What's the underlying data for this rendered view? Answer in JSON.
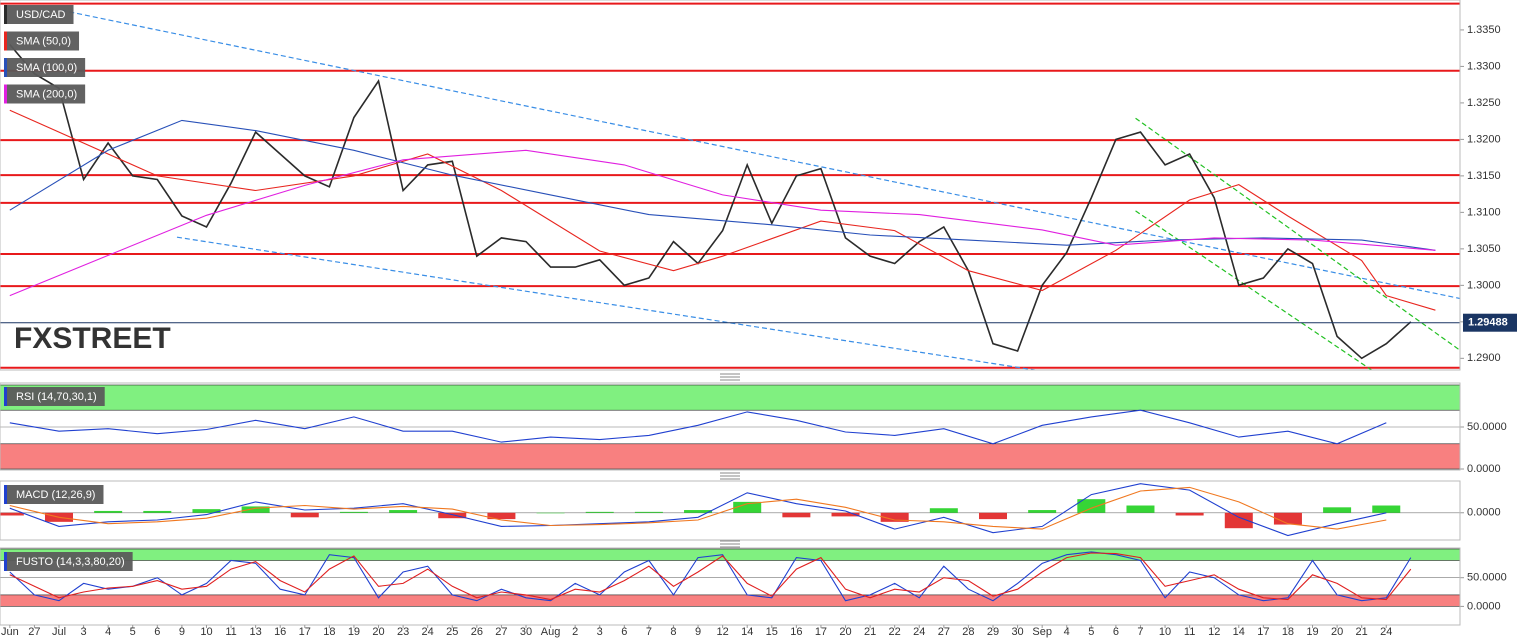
{
  "chart_data": [
    {
      "type": "line",
      "x": [
        0,
        1,
        2,
        3,
        4,
        5,
        6,
        7,
        8,
        9,
        10,
        11,
        12,
        13,
        14,
        15,
        16,
        17,
        18,
        19,
        20,
        21,
        22,
        23,
        24,
        25,
        26,
        27,
        28,
        29,
        30,
        31,
        32,
        33,
        34,
        35,
        36,
        37,
        38,
        39,
        40,
        41,
        42,
        43,
        44,
        45,
        46,
        47,
        48,
        49,
        50,
        51,
        52,
        53,
        54,
        55,
        56,
        57
      ],
      "xlim": [
        -0.4,
        59
      ],
      "ylim": [
        1.2884,
        1.3391
      ],
      "yticks": [
        {
          "value": 1.335,
          "label": "1.3350"
        },
        {
          "value": 1.33,
          "label": "1.3300"
        },
        {
          "value": 1.325,
          "label": "1.3250"
        },
        {
          "value": 1.32,
          "label": "1.3200"
        },
        {
          "value": 1.315,
          "label": "1.3150"
        },
        {
          "value": 1.31,
          "label": "1.3100"
        },
        {
          "value": 1.305,
          "label": "1.3050"
        },
        {
          "value": 1.3,
          "label": "1.3000"
        },
        {
          "value": 1.295,
          "label": "1.2950"
        },
        {
          "value": 1.29,
          "label": "1.2900"
        }
      ],
      "grid": false,
      "series": [
        {
          "name": "USD/CAD",
          "color": "#2b2b2b",
          "values": [
            1.333,
            1.329,
            1.327,
            1.3145,
            1.3195,
            1.315,
            1.3145,
            1.3095,
            1.308,
            1.314,
            1.321,
            1.318,
            1.315,
            1.3135,
            1.323,
            1.328,
            1.313,
            1.3165,
            1.317,
            1.304,
            1.3065,
            1.306,
            1.3025,
            1.3025,
            1.3035,
            1.3,
            1.301,
            1.306,
            1.303,
            1.3075,
            1.3165,
            1.3085,
            1.315,
            1.316,
            1.3065,
            1.304,
            1.303,
            1.306,
            1.308,
            1.302,
            1.292,
            1.291,
            1.3,
            1.3045,
            1.312,
            1.32,
            1.321,
            1.3165,
            1.318,
            1.312,
            1.3,
            1.301,
            1.305,
            1.303,
            1.293,
            1.29,
            1.292,
            1.295
          ]
        },
        {
          "name": "SMA (50,0)",
          "color": "#e8261f",
          "x": [
            0,
            6,
            10,
            14,
            17,
            20,
            24,
            27,
            29,
            33,
            36,
            39,
            42,
            45,
            48,
            50,
            52,
            55,
            56,
            58
          ],
          "values": [
            1.324,
            1.315,
            1.313,
            1.315,
            1.318,
            1.313,
            1.3047,
            1.302,
            1.304,
            1.3088,
            1.3075,
            1.302,
            1.2993,
            1.3048,
            1.3117,
            1.3138,
            1.3095,
            1.3034,
            1.2986,
            1.2966
          ]
        },
        {
          "name": "SMA (100,0)",
          "color": "#2850b8",
          "x": [
            0,
            4,
            7,
            10,
            14,
            18,
            22,
            26,
            31,
            35,
            39,
            43,
            47,
            51,
            55,
            58
          ],
          "values": [
            1.3103,
            1.3185,
            1.3226,
            1.3212,
            1.3185,
            1.3151,
            1.3124,
            1.3097,
            1.3083,
            1.3069,
            1.3062,
            1.3055,
            1.3062,
            1.3065,
            1.3062,
            1.3048
          ]
        },
        {
          "name": "SMA (200,0)",
          "color": "#e020e0",
          "x": [
            0,
            4,
            8,
            12,
            16,
            21,
            25,
            29,
            33,
            37,
            42,
            45,
            49,
            53,
            58
          ],
          "values": [
            1.2986,
            1.3041,
            1.3096,
            1.3137,
            1.3172,
            1.3185,
            1.3165,
            1.3124,
            1.3103,
            1.3097,
            1.3076,
            1.3055,
            1.3065,
            1.3062,
            1.3048
          ]
        }
      ],
      "levels": [
        1.3386,
        1.3294,
        1.3199,
        1.3151,
        1.3113,
        1.3043,
        1.2999,
        1.2887
      ],
      "level_color": "#e8191b",
      "trendlines": [
        {
          "color": "#3a8ee6",
          "x": [
            2.1,
            59
          ],
          "values": [
            1.3377,
            1.2982
          ]
        },
        {
          "color": "#3a8ee6",
          "x": [
            6.8,
            41.7
          ],
          "values": [
            1.3066,
            1.2884
          ]
        },
        {
          "color": "#22c022",
          "x": [
            45.8,
            59
          ],
          "values": [
            1.3229,
            1.2911
          ]
        },
        {
          "color": "#22c022",
          "x": [
            45.8,
            55.4
          ],
          "values": [
            1.3102,
            1.2884
          ]
        }
      ],
      "last": 1.29488,
      "last_color": "#1a3563",
      "watermark": "FXSTREET"
    },
    {
      "type": "line",
      "title": "RSI (14,70,30,1)",
      "xlim": [
        -0.4,
        59
      ],
      "ylim": [
        0,
        100
      ],
      "yticks": [
        {
          "value": 50,
          "label": "50.0000"
        },
        {
          "value": 0,
          "label": "0.0000"
        }
      ],
      "grid": true,
      "bands": [
        {
          "range": [
            70,
            100
          ],
          "color": "#80f080"
        },
        {
          "range": [
            0,
            30
          ],
          "color": "#f88080"
        }
      ],
      "series": [
        {
          "name": "RSI",
          "color": "#2040d0",
          "x": [
            0,
            2,
            4,
            6,
            8,
            10,
            12,
            14,
            16,
            18,
            20,
            22,
            24,
            26,
            28,
            30,
            32,
            34,
            36,
            38,
            40,
            42,
            44,
            46,
            48,
            50,
            52,
            54,
            56
          ],
          "values": [
            55,
            45,
            48,
            42,
            47,
            58,
            48,
            62,
            45,
            45,
            32,
            38,
            35,
            40,
            52,
            68,
            58,
            44,
            40,
            48,
            30,
            52,
            62,
            70,
            55,
            38,
            45,
            30,
            55
          ]
        }
      ]
    },
    {
      "type": "line",
      "title": "MACD (12,26,9)",
      "xlim": [
        -0.4,
        59
      ],
      "ylim": [
        -0.003,
        0.0035
      ],
      "yticks": [
        {
          "value": 0,
          "label": "0.0000"
        }
      ],
      "grid": true,
      "series": [
        {
          "name": "histogram",
          "type": "bar",
          "color": "#20d020",
          "negative_color": "#e02020",
          "x": [
            0,
            2,
            4,
            6,
            8,
            10,
            12,
            14,
            16,
            18,
            20,
            22,
            24,
            26,
            28,
            30,
            32,
            34,
            36,
            38,
            40,
            42,
            44,
            46,
            48,
            50,
            52,
            54,
            56
          ],
          "values": [
            -0.0003,
            -0.001,
            0.0002,
            0.0002,
            0.0004,
            0.0007,
            -0.0005,
            0.0001,
            0.0003,
            -0.0006,
            -0.0007,
            0,
            0.0001,
            0.0001,
            0.0003,
            0.0012,
            -0.0005,
            -0.0004,
            -0.001,
            0.0005,
            -0.0007,
            0.0003,
            0.0015,
            0.0008,
            -0.0003,
            -0.0017,
            -0.0013,
            0.0006,
            0.0008
          ]
        },
        {
          "name": "MACD",
          "color": "#2040d0",
          "x": [
            0,
            2,
            4,
            6,
            8,
            10,
            12,
            14,
            16,
            18,
            20,
            22,
            24,
            26,
            28,
            30,
            32,
            34,
            36,
            38,
            40,
            42,
            44,
            46,
            48,
            50,
            52,
            54,
            56
          ],
          "values": [
            0.0005,
            -0.0015,
            -0.001,
            -0.0008,
            -0.0002,
            0.0012,
            0.0003,
            0.0005,
            0.001,
            -0.0002,
            -0.0015,
            -0.0014,
            -0.0012,
            -0.001,
            -0.0005,
            0.0022,
            0.001,
            0.0002,
            -0.0018,
            -0.0005,
            -0.0022,
            -0.0015,
            0.002,
            0.0032,
            0.0025,
            -0.0005,
            -0.0025,
            -0.0012,
            0
          ]
        },
        {
          "name": "signal",
          "color": "#f07820",
          "x": [
            0,
            2,
            4,
            6,
            8,
            10,
            12,
            14,
            16,
            18,
            20,
            22,
            24,
            26,
            28,
            30,
            32,
            34,
            36,
            38,
            40,
            42,
            44,
            46,
            48,
            50,
            52,
            54,
            56
          ],
          "values": [
            0.0008,
            -0.0005,
            -0.0012,
            -0.001,
            -0.0006,
            0.0005,
            0.0008,
            0.0004,
            0.0007,
            0.0004,
            -0.0008,
            -0.0014,
            -0.0013,
            -0.0011,
            -0.0008,
            0.001,
            0.0015,
            0.0006,
            -0.0008,
            -0.001,
            -0.0015,
            -0.0018,
            0.0005,
            0.0024,
            0.0028,
            0.0012,
            -0.0012,
            -0.0018,
            -0.0008
          ]
        }
      ]
    },
    {
      "type": "line",
      "title": "FUSTO (14,3,3,80,20)",
      "x": [
        0,
        1,
        2,
        3,
        4,
        5,
        6,
        7,
        8,
        9,
        10,
        11,
        12,
        13,
        14,
        15,
        16,
        17,
        18,
        19,
        20,
        21,
        22,
        23,
        24,
        25,
        26,
        27,
        28,
        29,
        30,
        31,
        32,
        33,
        34,
        35,
        36,
        37,
        38,
        39,
        40,
        41,
        42,
        43,
        44,
        45,
        46,
        47,
        48,
        49,
        50,
        51,
        52,
        53,
        54,
        55,
        56,
        57
      ],
      "xlim": [
        -0.4,
        59
      ],
      "ylim": [
        -15,
        100
      ],
      "yticks": [
        {
          "value": 50,
          "label": "50.0000"
        },
        {
          "value": 0,
          "label": "0.0000"
        }
      ],
      "grid": true,
      "bands": [
        {
          "range": [
            80,
            100
          ],
          "color": "#80f080"
        },
        {
          "range": [
            0,
            20
          ],
          "color": "#f88080"
        }
      ],
      "series": [
        {
          "name": "%K",
          "color": "#2040d0",
          "values": [
            60,
            20,
            10,
            40,
            30,
            35,
            50,
            20,
            40,
            80,
            75,
            30,
            20,
            90,
            85,
            15,
            60,
            70,
            20,
            10,
            30,
            15,
            10,
            40,
            20,
            60,
            80,
            20,
            85,
            90,
            20,
            15,
            85,
            80,
            10,
            20,
            40,
            15,
            70,
            30,
            10,
            40,
            75,
            90,
            95,
            90,
            80,
            15,
            60,
            50,
            20,
            10,
            15,
            80,
            20,
            10,
            15,
            85
          ]
        },
        {
          "name": "%D",
          "color": "#e02020",
          "values": [
            55,
            35,
            15,
            25,
            32,
            35,
            45,
            30,
            35,
            65,
            78,
            45,
            25,
            65,
            88,
            35,
            40,
            65,
            35,
            15,
            25,
            20,
            12,
            30,
            25,
            45,
            70,
            35,
            60,
            88,
            40,
            18,
            65,
            85,
            30,
            15,
            30,
            25,
            50,
            45,
            18,
            30,
            60,
            85,
            93,
            92,
            85,
            35,
            45,
            55,
            30,
            15,
            12,
            55,
            40,
            15,
            12,
            65
          ]
        }
      ],
      "xticks": [
        {
          "value": 0,
          "label": "Jun"
        },
        {
          "value": 1,
          "label": "27"
        },
        {
          "value": 2,
          "label": "Jul"
        },
        {
          "value": 3,
          "label": "3"
        },
        {
          "value": 4,
          "label": "4"
        },
        {
          "value": 5,
          "label": "5"
        },
        {
          "value": 6,
          "label": "6"
        },
        {
          "value": 7,
          "label": "9"
        },
        {
          "value": 8,
          "label": "10"
        },
        {
          "value": 9,
          "label": "11"
        },
        {
          "value": 10,
          "label": "13"
        },
        {
          "value": 11,
          "label": "16"
        },
        {
          "value": 12,
          "label": "17"
        },
        {
          "value": 13,
          "label": "18"
        },
        {
          "value": 14,
          "label": "19"
        },
        {
          "value": 15,
          "label": "20"
        },
        {
          "value": 16,
          "label": "23"
        },
        {
          "value": 17,
          "label": "24"
        },
        {
          "value": 18,
          "label": "25"
        },
        {
          "value": 19,
          "label": "26"
        },
        {
          "value": 20,
          "label": "27"
        },
        {
          "value": 21,
          "label": "30"
        },
        {
          "value": 22,
          "label": "Aug"
        },
        {
          "value": 23,
          "label": "2"
        },
        {
          "value": 24,
          "label": "3"
        },
        {
          "value": 25,
          "label": "6"
        },
        {
          "value": 26,
          "label": "7"
        },
        {
          "value": 27,
          "label": "8"
        },
        {
          "value": 28,
          "label": "9"
        },
        {
          "value": 29,
          "label": "12"
        },
        {
          "value": 30,
          "label": "14"
        },
        {
          "value": 31,
          "label": "15"
        },
        {
          "value": 32,
          "label": "16"
        },
        {
          "value": 33,
          "label": "17"
        },
        {
          "value": 34,
          "label": "20"
        },
        {
          "value": 35,
          "label": "21"
        },
        {
          "value": 36,
          "label": "22"
        },
        {
          "value": 37,
          "label": "24"
        },
        {
          "value": 38,
          "label": "27"
        },
        {
          "value": 39,
          "label": "28"
        },
        {
          "value": 40,
          "label": "29"
        },
        {
          "value": 41,
          "label": "30"
        },
        {
          "value": 42,
          "label": "Sep"
        },
        {
          "value": 43,
          "label": "4"
        },
        {
          "value": 44,
          "label": "5"
        },
        {
          "value": 45,
          "label": "6"
        },
        {
          "value": 46,
          "label": "7"
        },
        {
          "value": 47,
          "label": "10"
        },
        {
          "value": 48,
          "label": "11"
        },
        {
          "value": 49,
          "label": "12"
        },
        {
          "value": 50,
          "label": "14"
        },
        {
          "value": 51,
          "label": "17"
        },
        {
          "value": 52,
          "label": "18"
        },
        {
          "value": 53,
          "label": "19"
        },
        {
          "value": 54,
          "label": "20"
        },
        {
          "value": 55,
          "label": "21"
        },
        {
          "value": 56,
          "label": "24"
        }
      ]
    }
  ]
}
